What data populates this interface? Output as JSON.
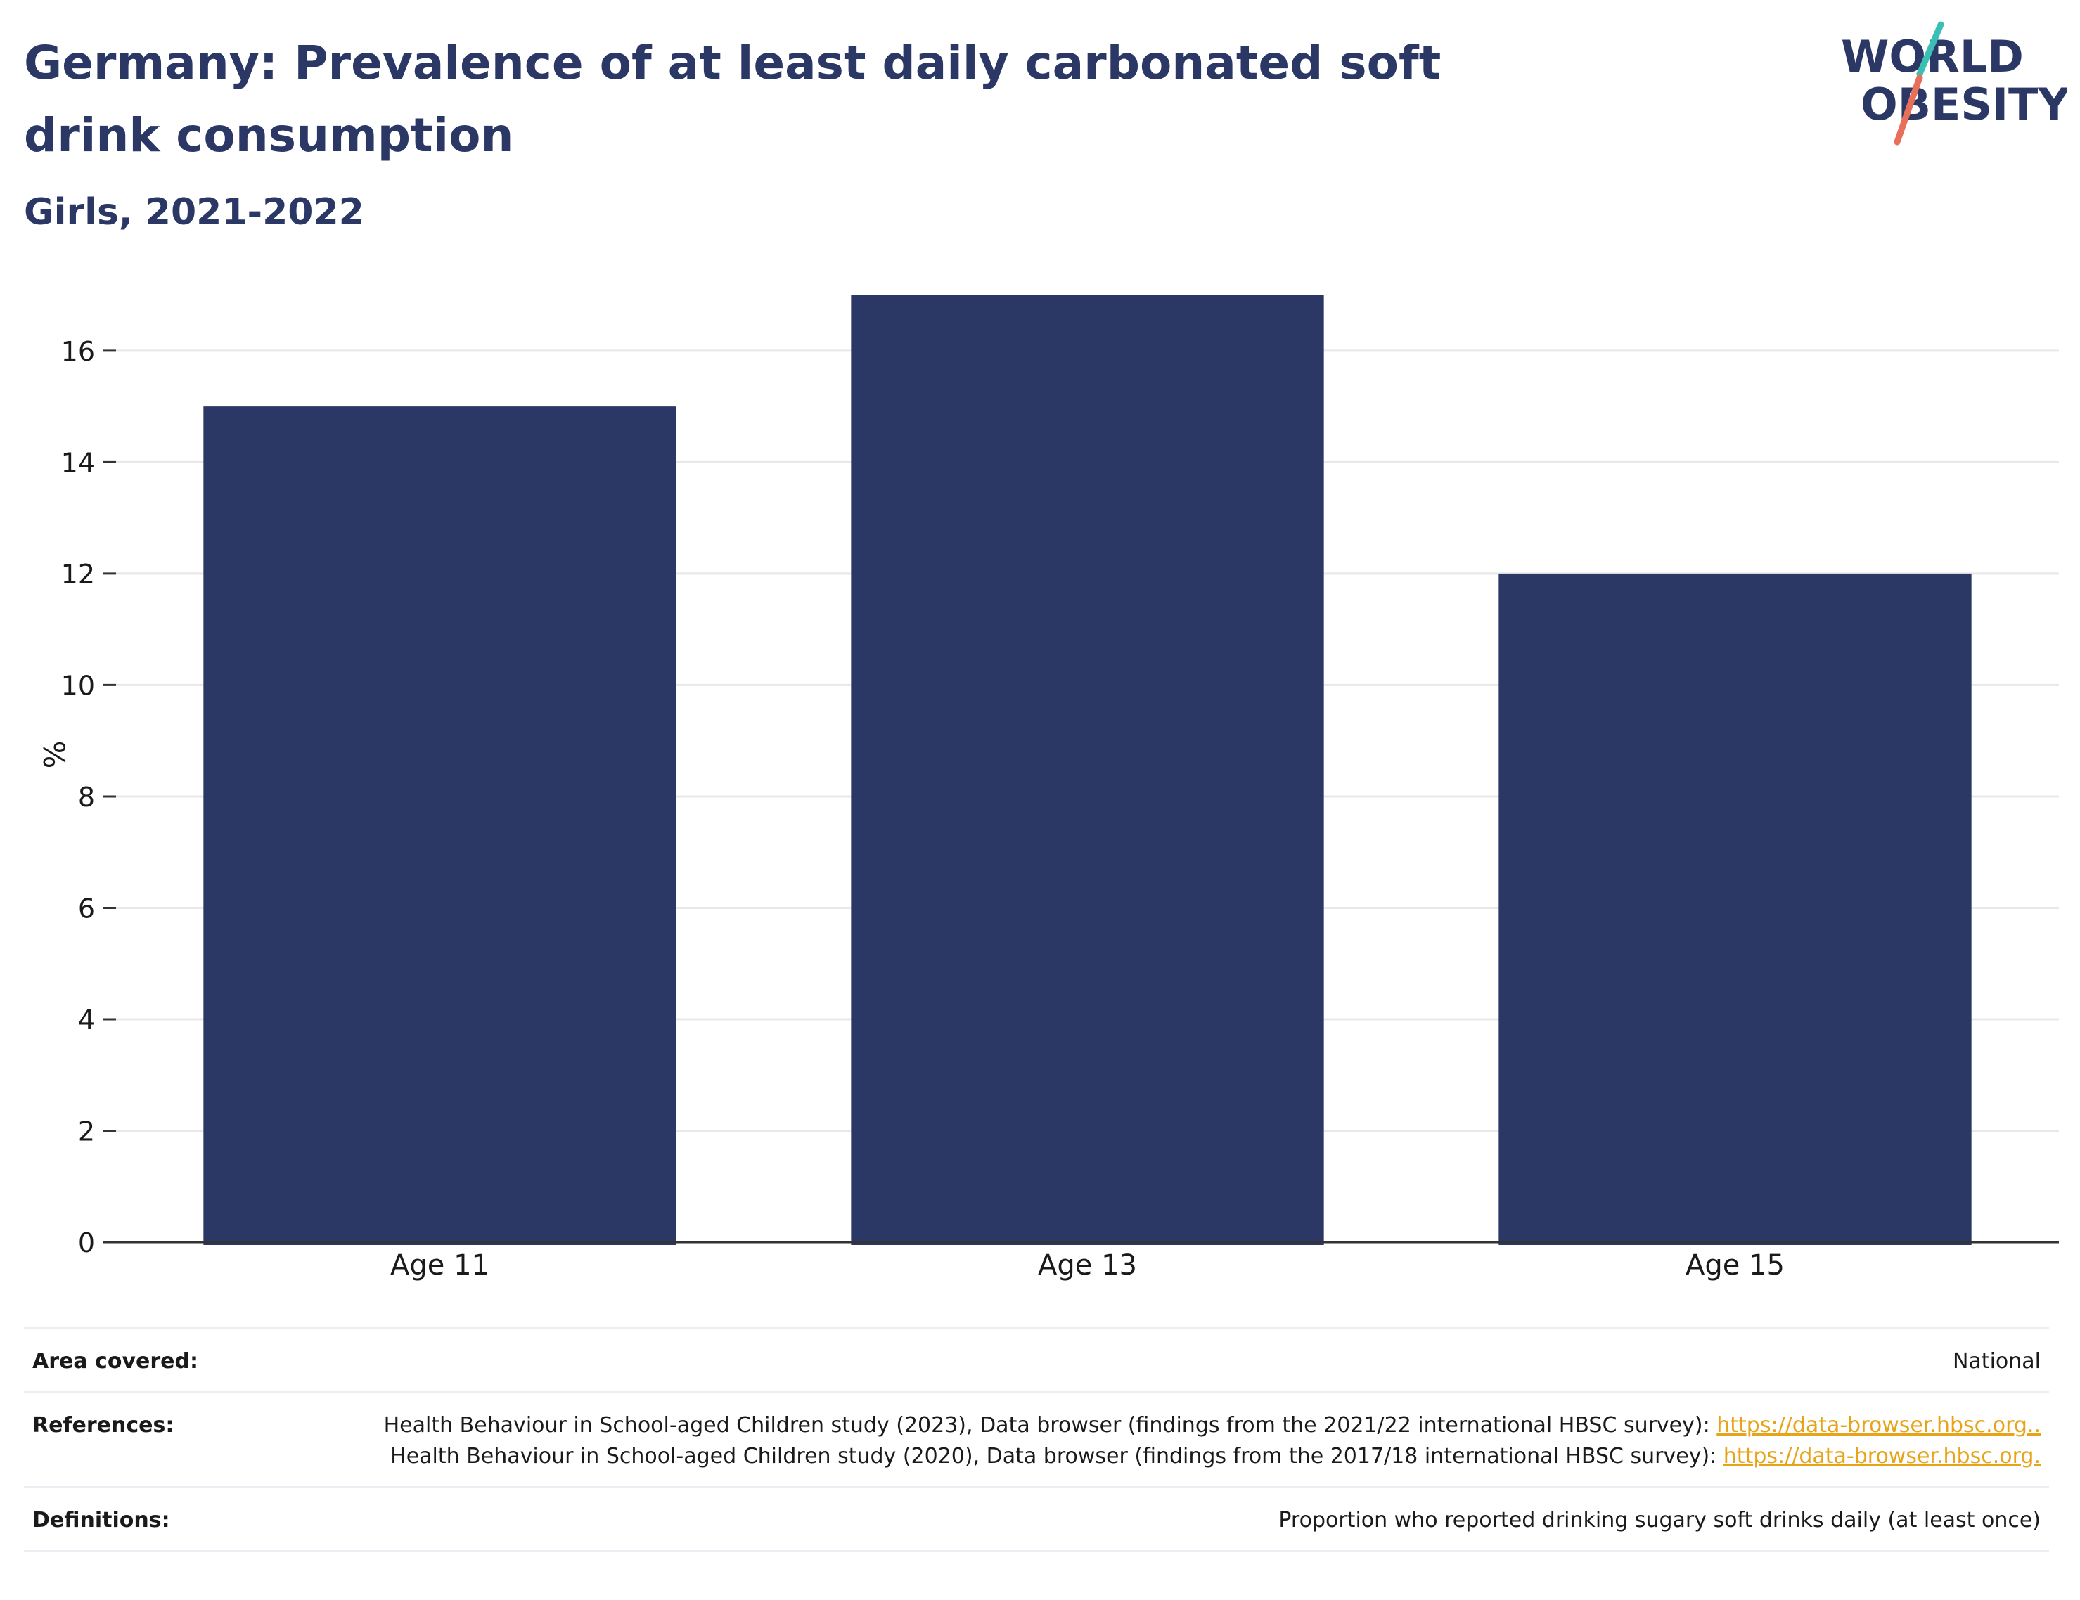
{
  "header": {
    "title": "Germany: Prevalence of at least daily carbonated soft drink consumption",
    "subtitle": "Girls, 2021-2022"
  },
  "logo": {
    "line1": "WORLD",
    "line2": "OBESITY",
    "colors": {
      "text": "#2b3764",
      "slash_top": "#3bbfb4",
      "slash_bottom": "#e8705a"
    }
  },
  "chart_data": {
    "type": "bar",
    "categories": [
      "Age 11",
      "Age 13",
      "Age 15"
    ],
    "values": [
      15,
      17,
      12
    ],
    "ylabel": "%",
    "xlabel": "",
    "ylim": [
      0,
      17.5
    ],
    "yticks": [
      0,
      2,
      4,
      6,
      8,
      10,
      12,
      14,
      16
    ],
    "grid": true,
    "bar_color": "#2b3764"
  },
  "meta": {
    "area_label": "Area covered:",
    "area_value": "National",
    "references_label": "References:",
    "references_text1": "Health Behaviour in School-aged Children study (2023), Data browser (findings from the 2021/22 international HBSC survey):",
    "references_link1": "https://data-browser.hbsc.org..",
    "references_text2": " Health Behaviour in School-aged Children study (2020), Data browser (findings from the 2017/18 international HBSC survey): ",
    "references_link2": "https://data-browser.hbsc.org.",
    "definitions_label": "Definitions:",
    "definitions_value": "Proportion who reported drinking sugary soft drinks daily (at least once)"
  }
}
